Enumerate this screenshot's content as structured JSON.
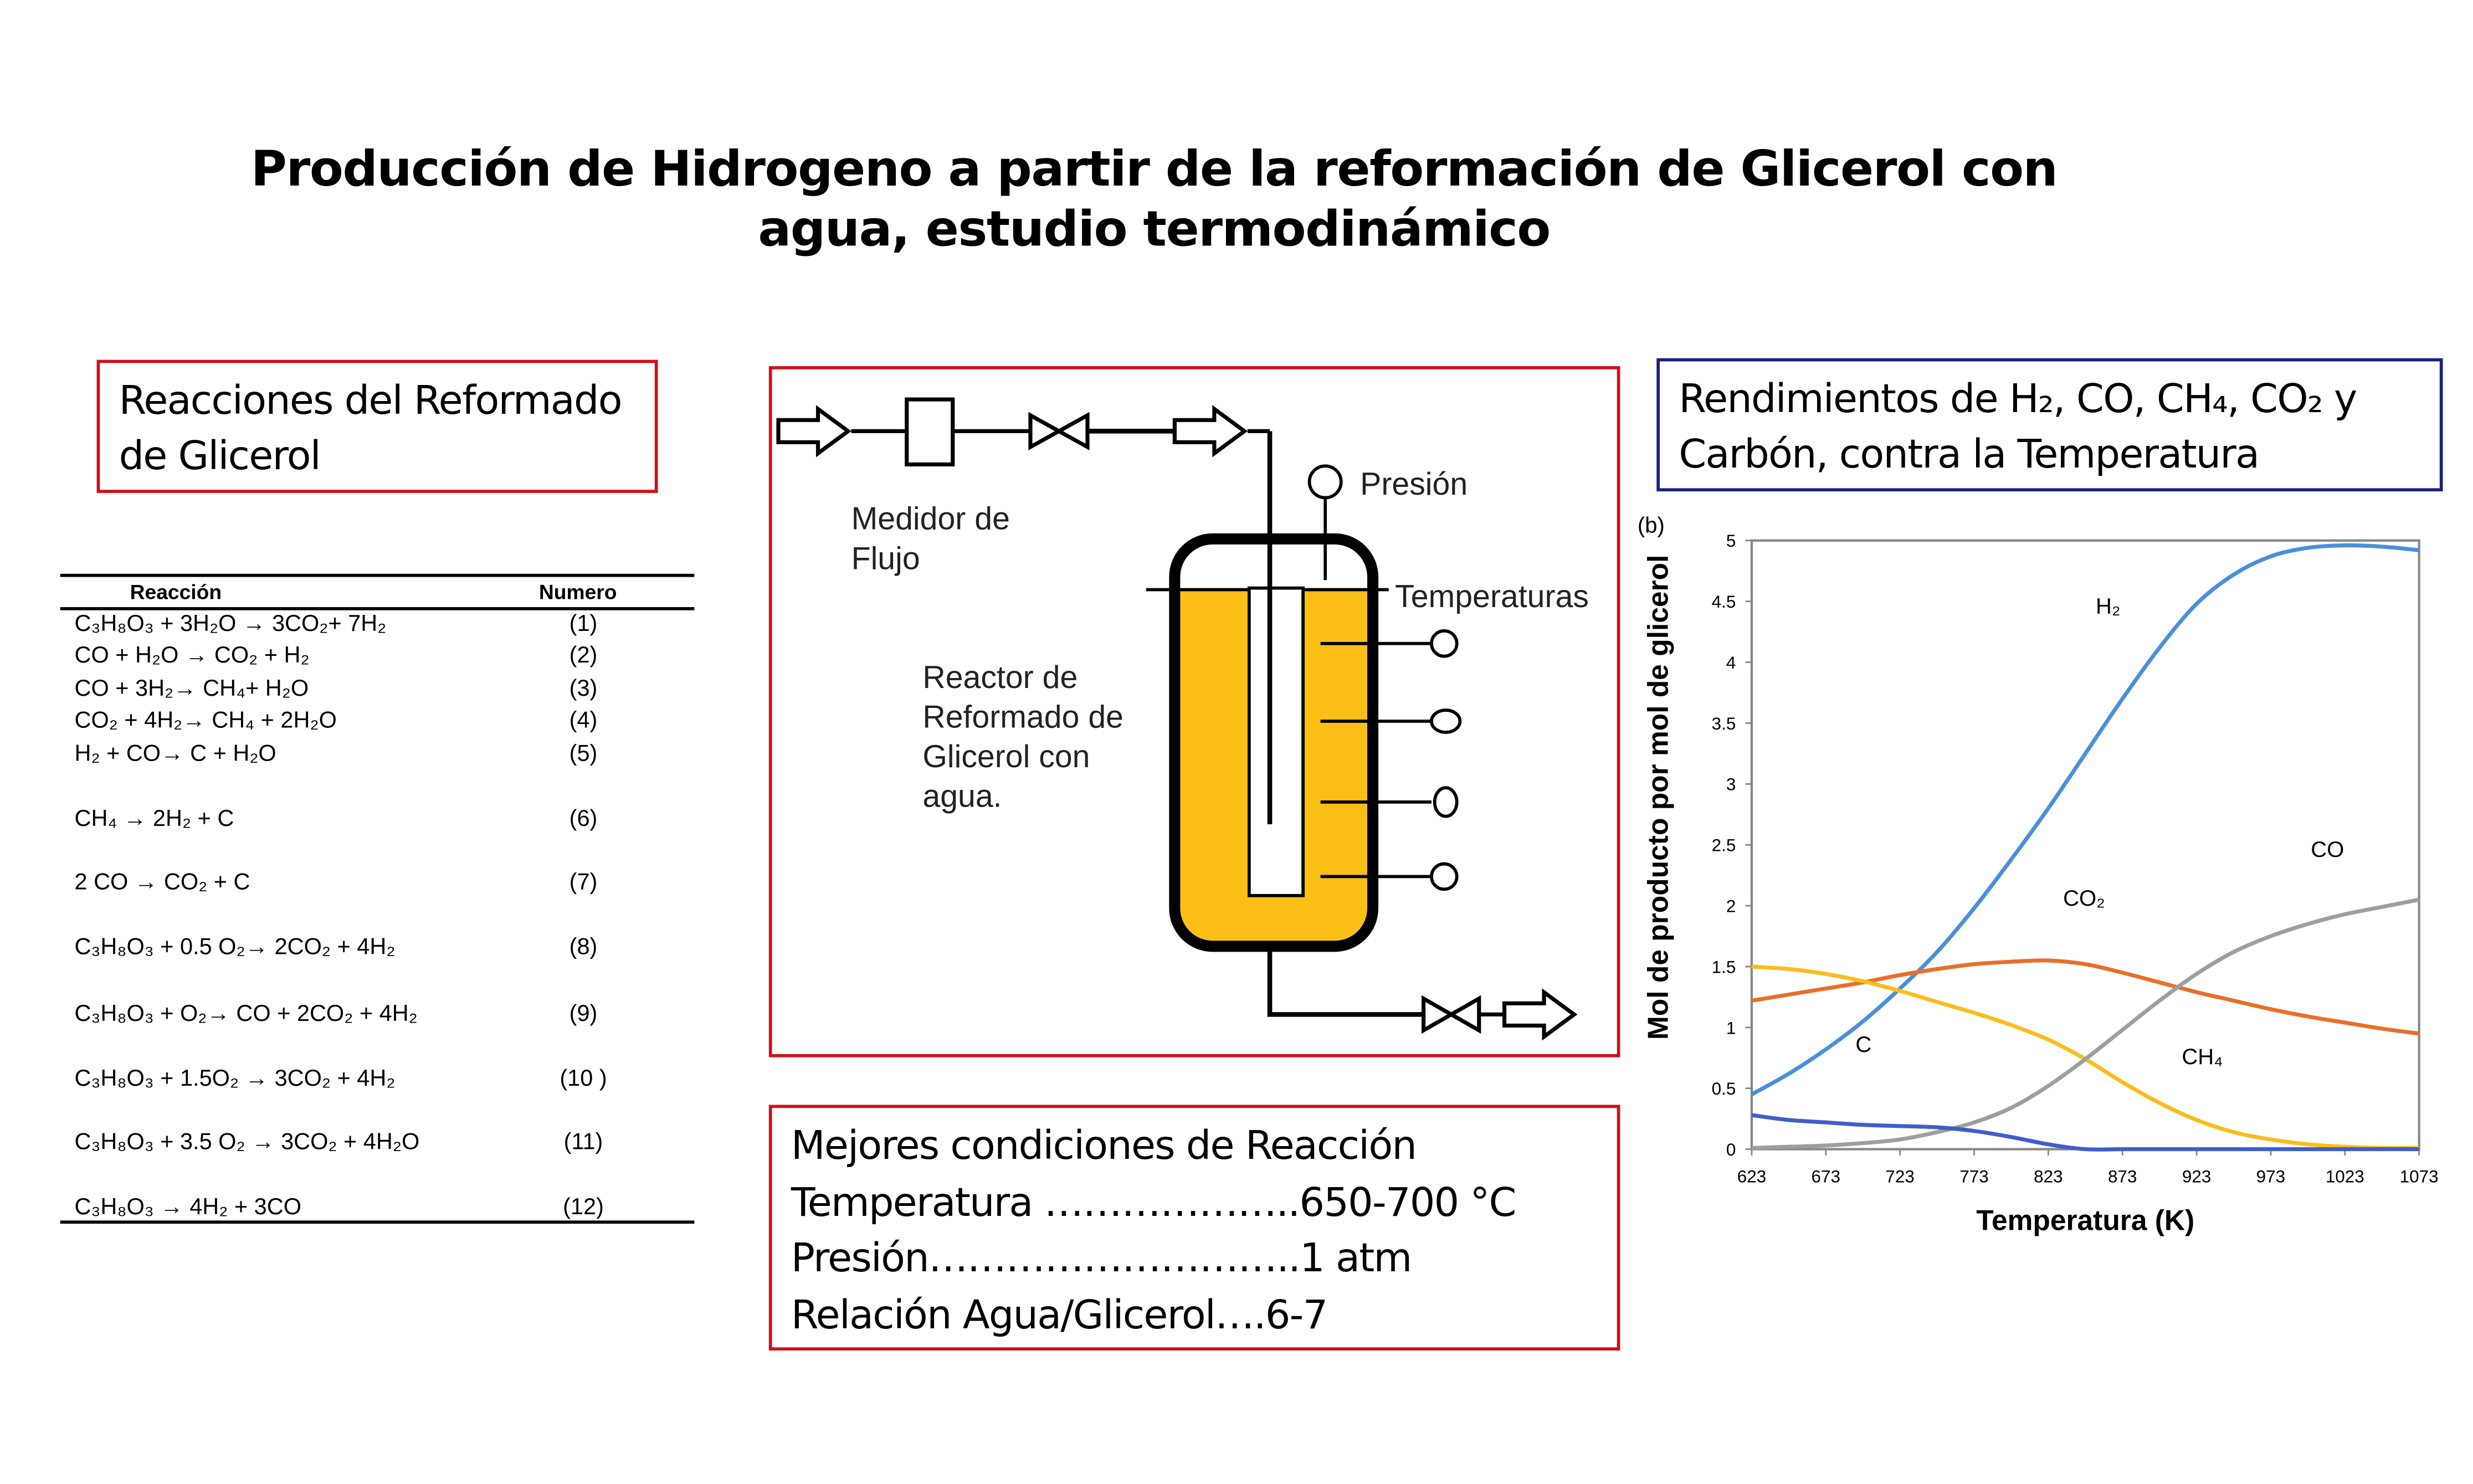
{
  "title": {
    "line1": "Producción de Hidrogeno a partir de la reformación de Glicerol con",
    "line2": "agua, estudio termodinámico"
  },
  "reactions_box": {
    "line1": "Reacciones del Reformado",
    "line2": "de Glicerol"
  },
  "reactions_table": {
    "headers": [
      "Reacción",
      "Numero"
    ],
    "rows": [
      {
        "reaction": "C₃H₈O₃  +  3H₂O →  3CO₂+  7H₂",
        "number": "(1)"
      },
      {
        "reaction": "CO  +  H₂O →  CO₂  +  H₂",
        "number": "(2)"
      },
      {
        "reaction": "CO  +  3H₂→ CH₄+  H₂O",
        "number": "(3)"
      },
      {
        "reaction": "CO₂  +  4H₂→ CH₄  +  2H₂O",
        "number": "(4)"
      },
      {
        "reaction": "H₂  +  CO→ C  +  H₂O",
        "number": "(5)"
      },
      {
        "reaction": "CH₄ → 2H₂ +   C",
        "number": "(6)"
      },
      {
        "reaction": "2 CO →  CO₂  +  C",
        "number": "(7)"
      },
      {
        "reaction": "C₃H₈O₃ + 0.5 O₂→ 2CO₂  +  4H₂",
        "number": "(8)"
      },
      {
        "reaction": "C₃H₈O₃  +  O₂→ CO  +  2CO₂  +  4H₂",
        "number": "(9)"
      },
      {
        "reaction": "C₃H₈O₃  +  1.5O₂  → 3CO₂  +  4H₂",
        "number": "(10 )"
      },
      {
        "reaction": "C₃H₈O₃  +  3.5 O₂  → 3CO₂  +  4H₂O",
        "number": "(11)"
      },
      {
        "reaction": "C₃H₈O₃  →   4H₂  +   3CO",
        "number": "(12)"
      }
    ]
  },
  "diagram": {
    "flow_meter_label": [
      "Medidor de",
      "Flujo"
    ],
    "pressure_label": "Presión",
    "temperatures_label": "Temperaturas",
    "reactor_label": [
      "Reactor de",
      "Reformado de",
      "Glicerol con",
      "agua."
    ],
    "liquid_color": "#fbbf16"
  },
  "conditions": {
    "title": "Mejores condiciones de Reacción",
    "lines": [
      "Temperatura ………………..650-700 °C",
      "Presión………………………..1 atm",
      "Relación Agua/Glicerol….6-7"
    ]
  },
  "chart_box": {
    "line1": "Rendimientos de H₂, CO, CH₄, CO₂ y",
    "line2": "Carbón, contra la Temperatura"
  },
  "chart_data": {
    "type": "line",
    "panel_label": "(b)",
    "xlabel": "Temperatura (K)",
    "ylabel": "Mol de producto por mol de glicerol",
    "xlim": [
      623,
      1073
    ],
    "ylim": [
      0,
      5
    ],
    "xticks": [
      623,
      673,
      723,
      773,
      823,
      873,
      923,
      973,
      1023,
      1073
    ],
    "yticks": [
      "0",
      "0.5",
      "1",
      "1.5",
      "2",
      "2.5",
      "3",
      "3.5",
      "4",
      "4.5",
      "5"
    ],
    "grid": false,
    "x": [
      623,
      648,
      673,
      698,
      723,
      748,
      773,
      798,
      823,
      848,
      873,
      898,
      923,
      948,
      973,
      998,
      1023,
      1048,
      1073
    ],
    "series": [
      {
        "color": "#4a90d9",
        "values": [
          0.45,
          0.62,
          0.82,
          1.05,
          1.32,
          1.62,
          1.98,
          2.38,
          2.8,
          3.25,
          3.7,
          4.12,
          4.48,
          4.72,
          4.87,
          4.94,
          4.96,
          4.95,
          4.92
        ]
      },
      {
        "color": "#e8702a",
        "values": [
          1.22,
          1.27,
          1.32,
          1.37,
          1.43,
          1.48,
          1.52,
          1.54,
          1.55,
          1.52,
          1.45,
          1.37,
          1.29,
          1.22,
          1.15,
          1.09,
          1.04,
          0.99,
          0.95
        ]
      },
      {
        "color": "#fbbc1c",
        "values": [
          1.5,
          1.48,
          1.44,
          1.38,
          1.3,
          1.21,
          1.12,
          1.02,
          0.9,
          0.74,
          0.55,
          0.38,
          0.24,
          0.14,
          0.08,
          0.04,
          0.02,
          0.01,
          0.01
        ]
      },
      {
        "color": "#9e9e9e",
        "values": [
          0.01,
          0.02,
          0.03,
          0.05,
          0.08,
          0.14,
          0.22,
          0.34,
          0.52,
          0.74,
          0.98,
          1.22,
          1.44,
          1.62,
          1.75,
          1.85,
          1.93,
          1.99,
          2.05
        ]
      },
      {
        "color": "#3f5ec9",
        "values": [
          0.28,
          0.24,
          0.22,
          0.2,
          0.19,
          0.18,
          0.15,
          0.1,
          0.04,
          0.0,
          0.0,
          0.0,
          0.0,
          0.0,
          0.0,
          0.0,
          0.0,
          0.0,
          0.0
        ]
      }
    ],
    "annotations": [
      {
        "text": "H₂",
        "x": 855,
        "y": 4.4
      },
      {
        "text": "CO",
        "x": 1000,
        "y": 2.4
      },
      {
        "text": "CO₂",
        "x": 833,
        "y": 2.0
      },
      {
        "text": "C",
        "x": 693,
        "y": 0.8
      },
      {
        "text": "CH₄",
        "x": 913,
        "y": 0.7
      }
    ]
  }
}
